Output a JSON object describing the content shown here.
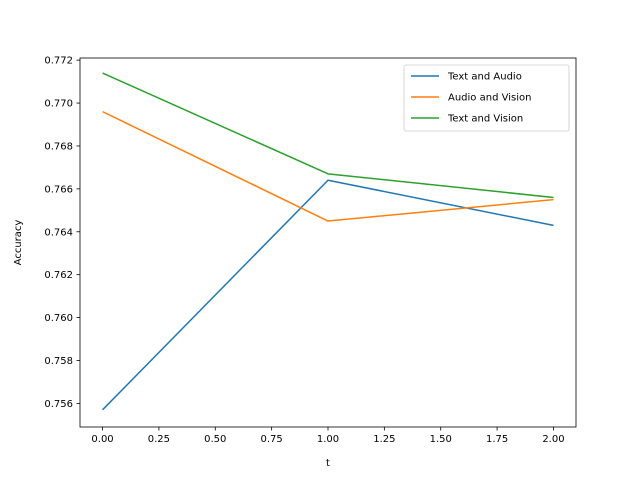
{
  "chart_data": {
    "type": "line",
    "title": "",
    "xlabel": "t",
    "ylabel": "Accuracy",
    "x": [
      0,
      1,
      2
    ],
    "xlim": [
      -0.1,
      2.1
    ],
    "ylim": [
      0.7549,
      0.7721
    ],
    "xticks": [
      "0.00",
      "0.25",
      "0.50",
      "0.75",
      "1.00",
      "1.25",
      "1.50",
      "1.75",
      "2.00"
    ],
    "yticks": [
      "0.756",
      "0.758",
      "0.760",
      "0.762",
      "0.764",
      "0.766",
      "0.768",
      "0.770",
      "0.772"
    ],
    "grid": false,
    "legend_position": "top-right",
    "series": [
      {
        "name": "Text and Audio",
        "color": "#1f77b4",
        "values": [
          0.7557,
          0.7664,
          0.7643
        ]
      },
      {
        "name": "Audio and Vision",
        "color": "#ff7f0e",
        "values": [
          0.7696,
          0.7645,
          0.7655
        ]
      },
      {
        "name": "Text and Vision",
        "color": "#2ca02c",
        "values": [
          0.7714,
          0.7667,
          0.7656
        ]
      }
    ]
  }
}
